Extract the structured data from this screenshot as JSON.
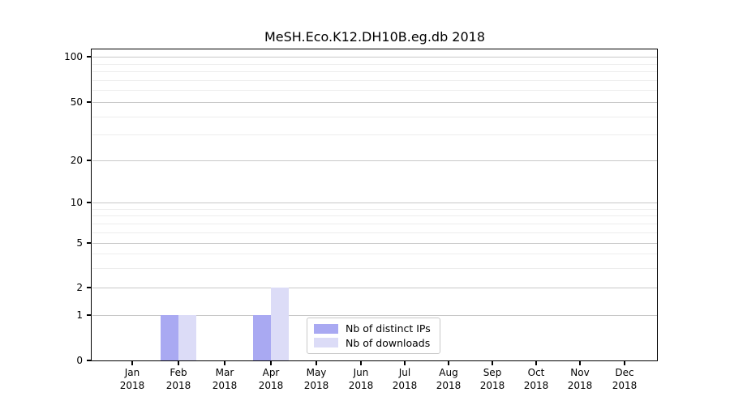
{
  "title": "MeSH.Eco.K12.DH10B.eg.db 2018",
  "chart_data": {
    "type": "bar",
    "title": "MeSH.Eco.K12.DH10B.eg.db 2018",
    "categories": [
      "Jan 2018",
      "Feb 2018",
      "Mar 2018",
      "Apr 2018",
      "May 2018",
      "Jun 2018",
      "Jul 2018",
      "Aug 2018",
      "Sep 2018",
      "Oct 2018",
      "Nov 2018",
      "Dec 2018"
    ],
    "month_labels": [
      "Jan",
      "Feb",
      "Mar",
      "Apr",
      "May",
      "Jun",
      "Jul",
      "Aug",
      "Sep",
      "Oct",
      "Nov",
      "Dec"
    ],
    "year_label": "2018",
    "series": [
      {
        "name": "Nb of distinct IPs",
        "color": "#a9a9f2",
        "values": [
          0,
          1,
          0,
          1,
          0,
          0,
          0,
          0,
          0,
          0,
          0,
          0
        ]
      },
      {
        "name": "Nb of downloads",
        "color": "#dcdcf7",
        "values": [
          0,
          1,
          0,
          2,
          0,
          0,
          0,
          0,
          0,
          0,
          0,
          0
        ]
      }
    ],
    "xlabel": "",
    "ylabel": "",
    "y_axis": {
      "scale": "symlog",
      "major_ticks": [
        0,
        1,
        2,
        5,
        10,
        20,
        50,
        100
      ],
      "minor_ticks": [
        3,
        4,
        6,
        7,
        8,
        9,
        30,
        40,
        60,
        70,
        80,
        90
      ],
      "ylim": [
        0,
        110
      ]
    },
    "grid": "horizontal, major and minor",
    "legend_position": "lower center",
    "colors": {
      "grid_major": "#c8c8c8",
      "grid_minor": "#ededed",
      "axis": "#000000",
      "background": "#ffffff"
    }
  }
}
